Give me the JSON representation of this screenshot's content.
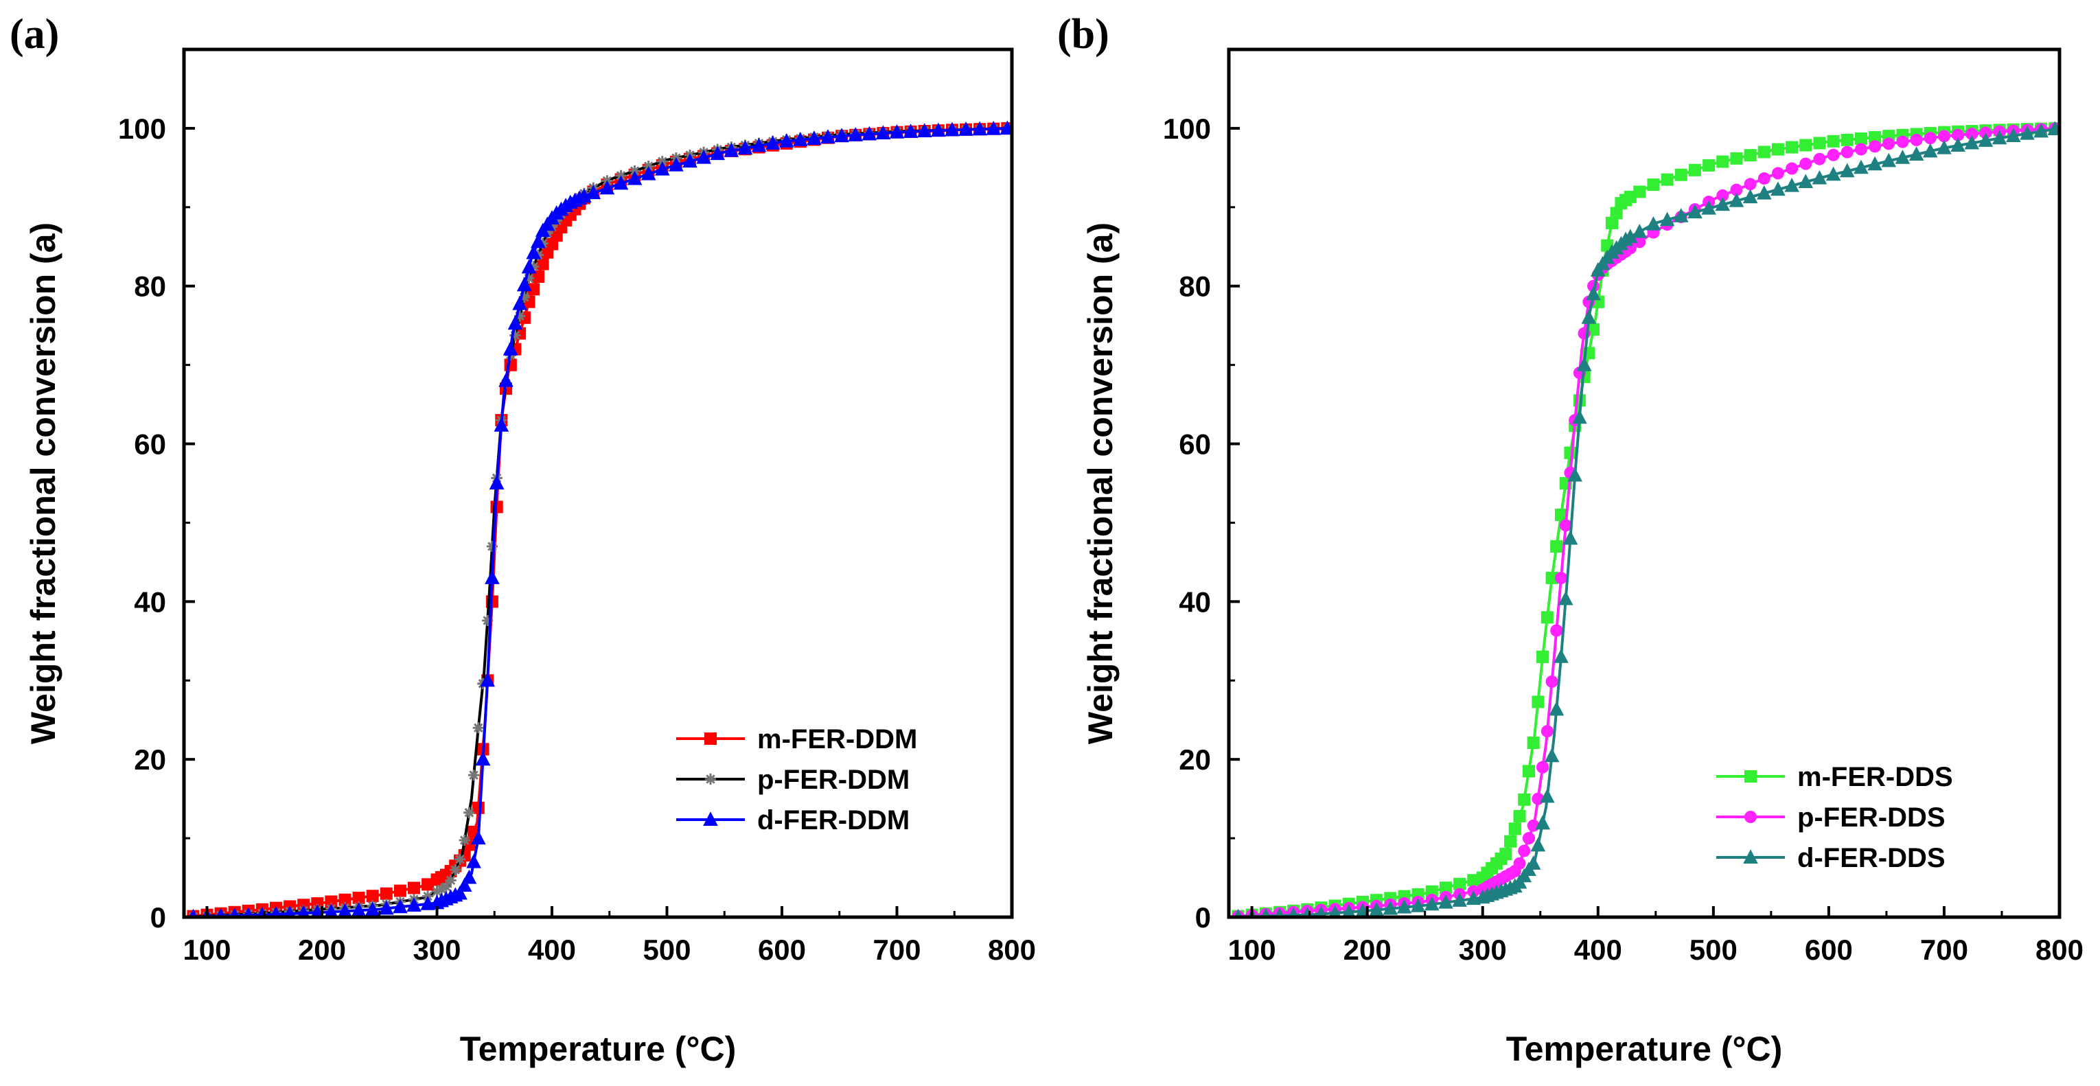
{
  "chart_data": [
    {
      "panel_label": "(a)",
      "type": "line",
      "xlabel": "Temperature (°C)",
      "ylabel": "Weight fractional conversion (a)",
      "xlim": [
        80,
        800
      ],
      "ylim": [
        0,
        110
      ],
      "xticks": [
        100,
        200,
        300,
        400,
        500,
        600,
        700,
        800
      ],
      "yticks": [
        0,
        20,
        40,
        60,
        80,
        100
      ],
      "grid": false,
      "legend_position": "bottom-right",
      "series": [
        {
          "name": "m-FER-DDM",
          "color": "#ff0000",
          "marker": "square",
          "x": [
            80,
            150,
            200,
            250,
            290,
            310,
            325,
            335,
            342,
            348,
            352,
            356,
            362,
            370,
            380,
            395,
            410,
            430,
            450,
            500,
            550,
            600,
            650,
            700,
            750,
            800
          ],
          "y": [
            0,
            1,
            1.8,
            2.8,
            4,
            5.5,
            8,
            12,
            25,
            40,
            52,
            63,
            69,
            73,
            78,
            84,
            88,
            91.5,
            93,
            95.5,
            97,
            98,
            99,
            99.5,
            99.8,
            100
          ]
        },
        {
          "name": "p-FER-DDM",
          "color": "#000000",
          "marker": "star",
          "x": [
            80,
            150,
            200,
            250,
            290,
            310,
            322,
            330,
            336,
            341,
            346,
            350,
            356,
            362,
            370,
            380,
            395,
            410,
            430,
            450,
            500,
            550,
            600,
            650,
            700,
            750,
            800
          ],
          "y": [
            0,
            0.5,
            1,
            1.5,
            2.5,
            4,
            8,
            15,
            24,
            31,
            42,
            52,
            63,
            70,
            75,
            81,
            86.5,
            89.5,
            92,
            93.5,
            96,
            97.5,
            98.5,
            99.2,
            99.6,
            99.8,
            100
          ]
        },
        {
          "name": "d-FER-DDM",
          "color": "#0000ff",
          "marker": "triangle",
          "x": [
            80,
            150,
            200,
            250,
            300,
            320,
            330,
            336,
            340,
            344,
            348,
            352,
            358,
            366,
            374,
            382,
            392,
            402,
            415,
            430,
            450,
            500,
            550,
            600,
            650,
            700,
            750,
            800
          ],
          "y": [
            0,
            0.3,
            0.6,
            1,
            1.8,
            3,
            5.5,
            10,
            20,
            30,
            43,
            55,
            66,
            74,
            79,
            83.5,
            87,
            89,
            90.5,
            91.5,
            92.5,
            95,
            97,
            98.3,
            99,
            99.5,
            99.8,
            100
          ]
        }
      ]
    },
    {
      "panel_label": "(b)",
      "type": "line",
      "xlabel": "Temperature (°C)",
      "ylabel": "Weight fractional conversion (a)",
      "xlim": [
        80,
        800
      ],
      "ylim": [
        0,
        110
      ],
      "xticks": [
        100,
        200,
        300,
        400,
        500,
        600,
        700,
        800
      ],
      "yticks": [
        0,
        20,
        40,
        60,
        80,
        100
      ],
      "grid": false,
      "legend_position": "bottom-right",
      "series": [
        {
          "name": "m-FER-DDS",
          "color": "#33ee33",
          "marker": "square",
          "x": [
            80,
            150,
            200,
            250,
            300,
            320,
            335,
            345,
            352,
            360,
            368,
            375,
            382,
            390,
            398,
            405,
            412,
            420,
            430,
            450,
            500,
            550,
            600,
            650,
            700,
            750,
            800
          ],
          "y": [
            0,
            1,
            2,
            3,
            5,
            8,
            14,
            23,
            33,
            43,
            51,
            58,
            64,
            70,
            76,
            83,
            88,
            90.5,
            91.5,
            93,
            95.5,
            97.2,
            98.3,
            99,
            99.5,
            99.8,
            100
          ]
        },
        {
          "name": "p-FER-DDS",
          "color": "#ff22ff",
          "marker": "circle",
          "x": [
            80,
            150,
            200,
            250,
            300,
            330,
            345,
            355,
            362,
            368,
            374,
            380,
            386,
            392,
            398,
            405,
            415,
            430,
            450,
            500,
            550,
            600,
            650,
            700,
            750,
            800
          ],
          "y": [
            0,
            0.8,
            1.3,
            2,
            3.5,
            6,
            12,
            22,
            33,
            43,
            53,
            63,
            72,
            78,
            81,
            82.5,
            83.5,
            85,
            87,
            91,
            94,
            96.5,
            98,
            99,
            99.6,
            100
          ]
        },
        {
          "name": "d-FER-DDS",
          "color": "#1e8080",
          "marker": "triangle",
          "x": [
            80,
            150,
            200,
            250,
            300,
            330,
            345,
            355,
            362,
            368,
            374,
            380,
            386,
            392,
            400,
            410,
            425,
            450,
            500,
            550,
            600,
            650,
            700,
            750,
            800
          ],
          "y": [
            0,
            0.3,
            0.8,
            1.5,
            2.5,
            4,
            7,
            14,
            23,
            33,
            44,
            56,
            67,
            76,
            82,
            84,
            86,
            88,
            90,
            92,
            94,
            95.8,
            97.5,
            98.8,
            100
          ]
        }
      ]
    }
  ]
}
